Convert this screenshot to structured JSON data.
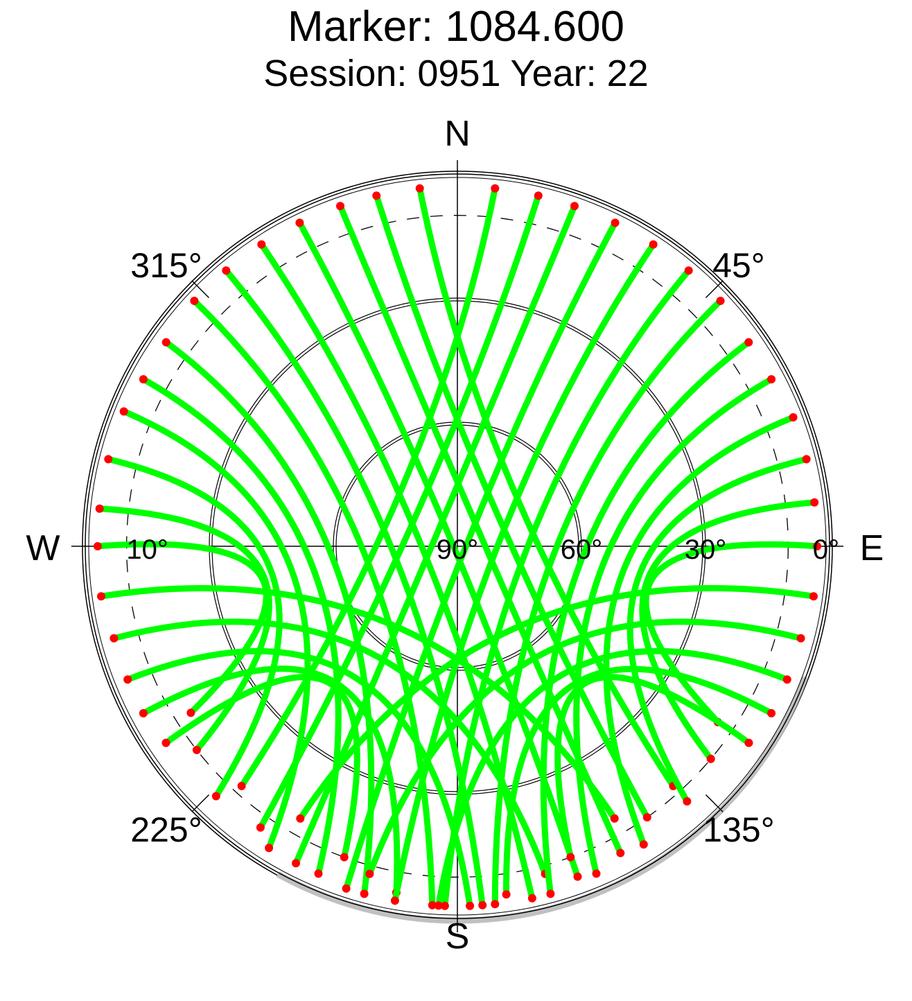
{
  "chart_data": {
    "type": "scatter",
    "projection": "polar skyplot",
    "title": "Marker: 1084.600",
    "subtitle": "Session: 0951 Year: 22",
    "cardinal_labels": {
      "north": "N",
      "south": "S",
      "east": "E",
      "west": "W"
    },
    "azimuth_labels": [
      {
        "label": "45°",
        "azimuth": 45
      },
      {
        "label": "135°",
        "azimuth": 135
      },
      {
        "label": "225°",
        "azimuth": 225
      },
      {
        "label": "315°",
        "azimuth": 315
      }
    ],
    "elevation_labels": [
      {
        "label": "0°",
        "elevation": 0
      },
      {
        "label": "30°",
        "elevation": 30
      },
      {
        "label": "60°",
        "elevation": 60
      },
      {
        "label": "90°",
        "elevation": 90
      },
      {
        "label": "10°",
        "elevation": 10
      }
    ],
    "elevation_rings": [
      30,
      60
    ],
    "cutoff_elevation_dashed": 10,
    "colors": {
      "track": "#00ff00",
      "low_elevation": "#ff0000",
      "shading": "#c0c0c0",
      "axes": "#000000"
    },
    "tracks_note": "satellite tracks in azimuth/elevation, approximated",
    "tracks": [
      {
        "start": [
          354,
          3
        ],
        "end": [
          138,
          12
        ]
      },
      {
        "start": [
          347,
          3
        ],
        "end": [
          145,
          10
        ]
      },
      {
        "start": [
          341,
          3
        ],
        "end": [
          152,
          6
        ]
      },
      {
        "start": [
          334,
          3
        ],
        "end": [
          160,
          5
        ]
      },
      {
        "start": [
          327,
          3
        ],
        "end": [
          168,
          3
        ]
      },
      {
        "start": [
          320,
          3
        ],
        "end": [
          176,
          3
        ]
      },
      {
        "start": [
          313,
          3
        ],
        "end": [
          184,
          3
        ]
      },
      {
        "start": [
          305,
          4
        ],
        "end": [
          195,
          3
        ]
      },
      {
        "start": [
          298,
          4
        ],
        "end": [
          203,
          4
        ]
      },
      {
        "start": [
          292,
          3
        ],
        "end": [
          212,
          4
        ]
      },
      {
        "start": [
          284,
          3
        ],
        "end": [
          224,
          6
        ]
      },
      {
        "start": [
          276,
          3
        ],
        "end": [
          232,
          10
        ]
      },
      {
        "start": [
          270,
          3
        ],
        "end": [
          238,
          14
        ]
      },
      {
        "start": [
          262,
          3
        ],
        "end": [
          150,
          14
        ]
      },
      {
        "start": [
          255,
          4
        ],
        "end": [
          165,
          8
        ]
      },
      {
        "start": [
          248,
          4
        ],
        "end": [
          178,
          3
        ]
      },
      {
        "start": [
          242,
          4
        ],
        "end": [
          190,
          5
        ]
      },
      {
        "start": [
          236,
          5
        ],
        "end": [
          200,
          10
        ]
      },
      {
        "start": [
          6,
          3
        ],
        "end": [
          222,
          12
        ]
      },
      {
        "start": [
          13,
          3
        ],
        "end": [
          215,
          7
        ]
      },
      {
        "start": [
          19,
          3
        ],
        "end": [
          207,
          4
        ]
      },
      {
        "start": [
          26,
          3
        ],
        "end": [
          198,
          3
        ]
      },
      {
        "start": [
          33,
          3
        ],
        "end": [
          190,
          3
        ]
      },
      {
        "start": [
          40,
          3
        ],
        "end": [
          182,
          3
        ]
      },
      {
        "start": [
          47,
          3
        ],
        "end": [
          174,
          3
        ]
      },
      {
        "start": [
          55,
          4
        ],
        "end": [
          165,
          3
        ]
      },
      {
        "start": [
          62,
          4
        ],
        "end": [
          157,
          4
        ]
      },
      {
        "start": [
          69,
          3
        ],
        "end": [
          148,
          5
        ]
      },
      {
        "start": [
          76,
          3
        ],
        "end": [
          138,
          7
        ]
      },
      {
        "start": [
          83,
          3
        ],
        "end": [
          130,
          10
        ]
      },
      {
        "start": [
          90,
          3
        ],
        "end": [
          124,
          14
        ]
      },
      {
        "start": [
          98,
          3
        ],
        "end": [
          210,
          14
        ]
      },
      {
        "start": [
          105,
          4
        ],
        "end": [
          195,
          8
        ]
      },
      {
        "start": [
          112,
          4
        ],
        "end": [
          183,
          3
        ]
      },
      {
        "start": [
          118,
          4
        ],
        "end": [
          172,
          5
        ]
      },
      {
        "start": [
          124,
          5
        ],
        "end": [
          160,
          10
        ]
      }
    ]
  }
}
